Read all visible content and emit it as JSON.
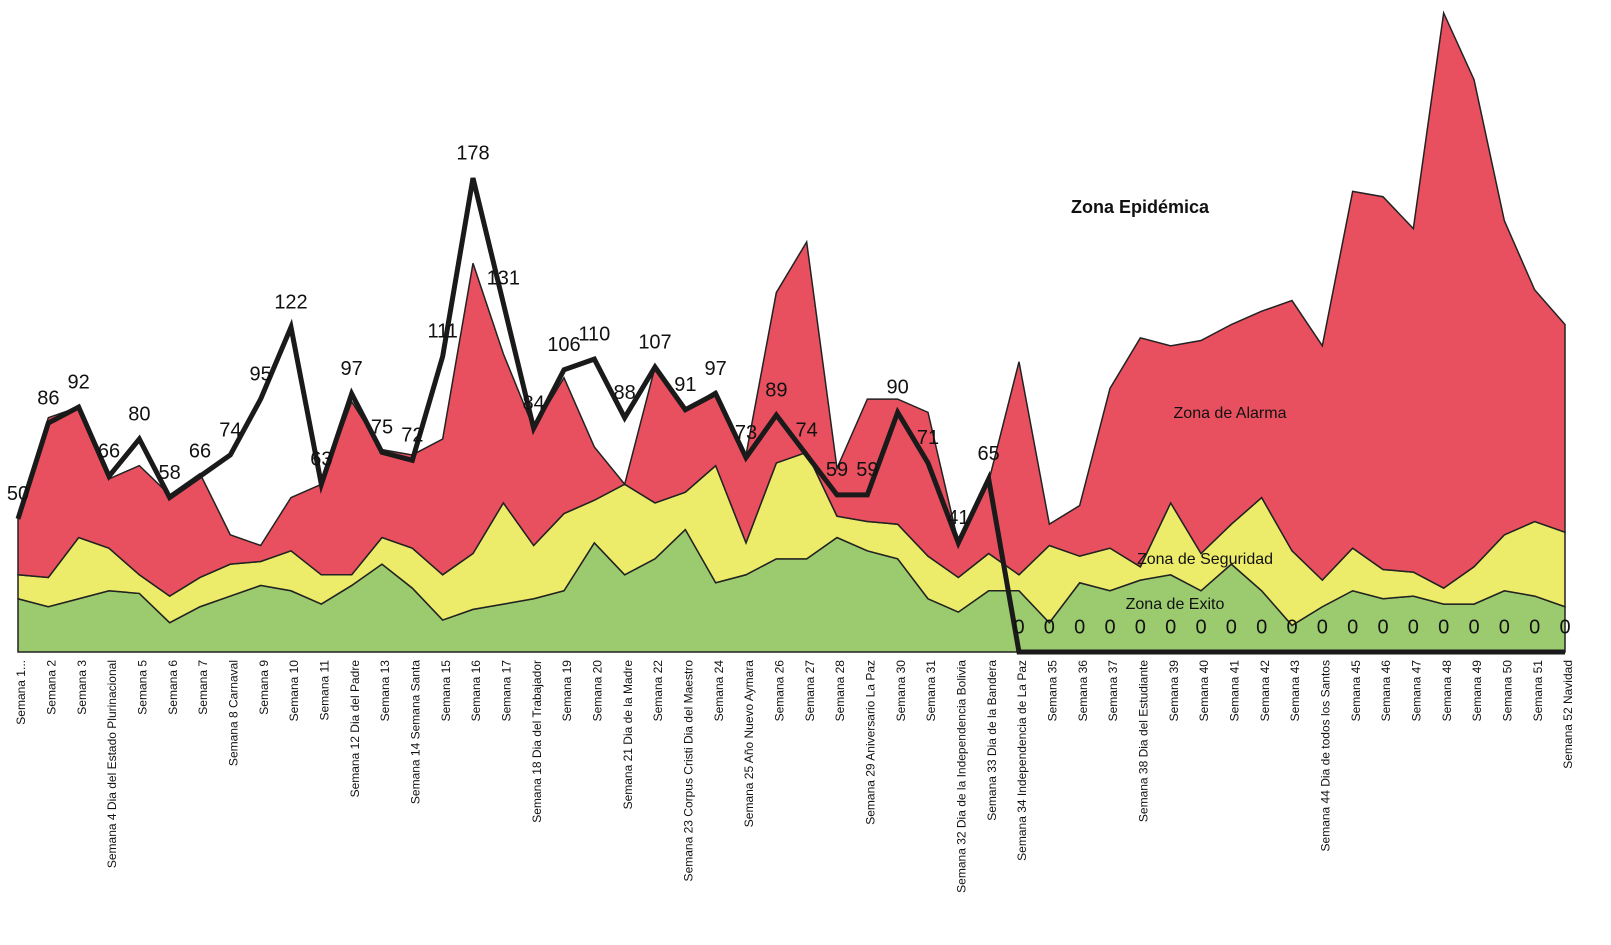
{
  "chart_data": {
    "type": "area",
    "annotations": [
      "Zona Epidémica"
    ],
    "categories": [
      "Semana 1...",
      "Semana 2",
      "Semana 3",
      "Semana 4 Dia del Estado Plurinacional",
      "Semana 5",
      "Semana 6",
      "Semana 7",
      "Semana 8 Carnaval",
      "Semana 9",
      "Semana 10",
      "Semana 11",
      "Semana 12 Dia del Padre",
      "Semana 13",
      "Semana 14 Semana Santa",
      "Semana 15",
      "Semana 16",
      "Semana 17",
      "Semana 18 Dia del Trabajador",
      "Semana 19",
      "Semana 20",
      "Semana 21 Dia de la Madre",
      "Semana 22",
      "Semana 23 Corpus Cristi Dia del Maestro",
      "Semana 24",
      "Semana 25 Año Nuevo Aymara",
      "Semana 26",
      "Semana 27",
      "Semana 28",
      "Semana 29 Aniversario La Paz",
      "Semana 30",
      "Semana 31",
      "Semana 32 Dia de la Independencia Bolivia",
      "Semana 33 Dia de la Bandera",
      "Semana 34 Independencia de La Paz",
      "Semana 35",
      "Semana 36",
      "Semana 37",
      "Semana 38 Dia del Estudiante",
      "Semana 39",
      "Semana 40",
      "Semana 41",
      "Semana 42",
      "Semana 43",
      "Semana 44 Dia de todos los Santos",
      "Semana 45",
      "Semana 46",
      "Semana 47",
      "Semana 48",
      "Semana 49",
      "Semana 50",
      "Semana 51",
      "Semana 52 Navidad"
    ],
    "series": [
      {
        "name": "Zona de Exito",
        "color": "#9bcb6e",
        "values": [
          20,
          17,
          20,
          23,
          22,
          11,
          17,
          21,
          25,
          23,
          18,
          25,
          33,
          24,
          12,
          16,
          18,
          20,
          23,
          41,
          29,
          35,
          46,
          26,
          29,
          35,
          35,
          43,
          38,
          35,
          20,
          15,
          23,
          23,
          11,
          26,
          23,
          27,
          29,
          23,
          33,
          23,
          10,
          17,
          23,
          20,
          21,
          18,
          18,
          23,
          21,
          17
        ]
      },
      {
        "name": "Zona de Seguridad",
        "color": "#ecec6a",
        "values": [
          9,
          11,
          23,
          16,
          7,
          10,
          11,
          12,
          9,
          15,
          11,
          4,
          10,
          15,
          17,
          21,
          38,
          20,
          29,
          16,
          34,
          21,
          14,
          44,
          12,
          36,
          40,
          8,
          11,
          13,
          16,
          13,
          14,
          6,
          29,
          10,
          16,
          5,
          27,
          14,
          15,
          35,
          28,
          10,
          16,
          11,
          9,
          6,
          14,
          21,
          28,
          28
        ]
      },
      {
        "name": "Zona de Alarma",
        "color": "#e8505f",
        "values": [
          22,
          60,
          49,
          26,
          41,
          38,
          39,
          11,
          6,
          20,
          34,
          65,
          33,
          35,
          51,
          109,
          56,
          44,
          51,
          20,
          0,
          51,
          31,
          28,
          33,
          64,
          79,
          18,
          46,
          47,
          54,
          13,
          27,
          80,
          8,
          19,
          60,
          86,
          59,
          80,
          75,
          70,
          94,
          88,
          134,
          140,
          129,
          216,
          183,
          118,
          87,
          78
        ]
      }
    ],
    "line": {
      "color": "#1a1a1a",
      "values": [
        50,
        86,
        92,
        66,
        80,
        58,
        66,
        74,
        95,
        122,
        63,
        97,
        75,
        72,
        111,
        178,
        131,
        84,
        106,
        110,
        88,
        107,
        91,
        97,
        73,
        89,
        74,
        59,
        59,
        90,
        71,
        41,
        65,
        0,
        0,
        0,
        0,
        0,
        0,
        0,
        0,
        0,
        0,
        0,
        0,
        0,
        0,
        0,
        0,
        0,
        0,
        0
      ]
    },
    "ylim": [
      0,
      240
    ],
    "stacked": true
  }
}
